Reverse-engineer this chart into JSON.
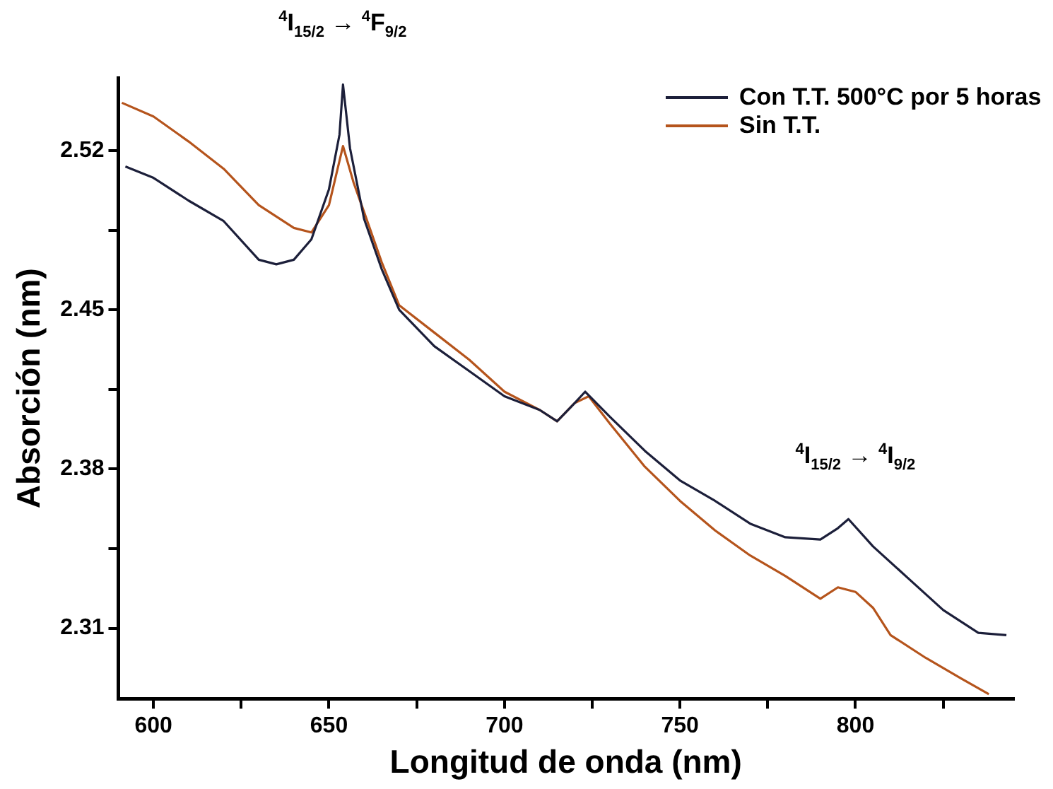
{
  "chart_data": {
    "type": "line",
    "xlabel": "Longitud de onda (nm)",
    "ylabel": "Absorción (nm)",
    "annotations": [
      "$^{4}$I$_{15/2}$ → $^{4}$F$_{9/2}$",
      "$^{4}$I$_{15/2}$ → $^{4}$I$_{9/2}$"
    ],
    "xlim": [
      590,
      845
    ],
    "ylim": [
      2.279,
      2.552
    ],
    "xticks": [
      600,
      {
        "value": 625,
        "label": null
      },
      650,
      {
        "value": 675,
        "label": null
      },
      700,
      {
        "value": 725,
        "label": null
      },
      750,
      {
        "value": 775,
        "label": null
      },
      800,
      {
        "value": 825,
        "label": null
      }
    ],
    "yticks": [
      2.31,
      {
        "value": 2.345,
        "label": null
      },
      2.38,
      {
        "value": 2.415,
        "label": null
      },
      2.45,
      {
        "value": 2.485,
        "label": null
      },
      2.52
    ],
    "grid": false,
    "legend": "top right",
    "series": [
      {
        "name": "Con T.T. 500°C por 5 horas",
        "color": "#1c1f3a",
        "x": [
          592,
          600,
          610,
          620,
          630,
          635,
          640,
          645,
          650,
          653,
          654,
          656,
          660,
          665,
          670,
          680,
          690,
          700,
          710,
          715,
          720,
          723,
          730,
          740,
          750,
          760,
          770,
          780,
          790,
          795,
          798,
          805,
          815,
          825,
          835,
          843
        ],
        "values": [
          2.513,
          2.508,
          2.498,
          2.489,
          2.472,
          2.47,
          2.472,
          2.481,
          2.503,
          2.527,
          2.549,
          2.521,
          2.49,
          2.468,
          2.45,
          2.434,
          2.423,
          2.412,
          2.406,
          2.401,
          2.409,
          2.414,
          2.403,
          2.388,
          2.375,
          2.366,
          2.356,
          2.35,
          2.349,
          2.354,
          2.358,
          2.346,
          2.332,
          2.318,
          2.308,
          2.307
        ]
      },
      {
        "name": "Sin T.T.",
        "color": "#b5541c",
        "x": [
          591,
          600,
          610,
          620,
          630,
          640,
          645,
          650,
          654,
          657,
          660,
          665,
          670,
          680,
          690,
          700,
          710,
          715,
          720,
          724,
          730,
          740,
          750,
          760,
          770,
          780,
          790,
          795,
          800,
          805,
          810,
          820,
          830,
          838
        ],
        "values": [
          2.541,
          2.535,
          2.524,
          2.512,
          2.496,
          2.486,
          2.484,
          2.496,
          2.522,
          2.506,
          2.493,
          2.471,
          2.452,
          2.44,
          2.428,
          2.414,
          2.406,
          2.401,
          2.409,
          2.412,
          2.4,
          2.381,
          2.366,
          2.353,
          2.342,
          2.333,
          2.323,
          2.328,
          2.326,
          2.319,
          2.307,
          2.297,
          2.288,
          2.281
        ]
      }
    ]
  }
}
